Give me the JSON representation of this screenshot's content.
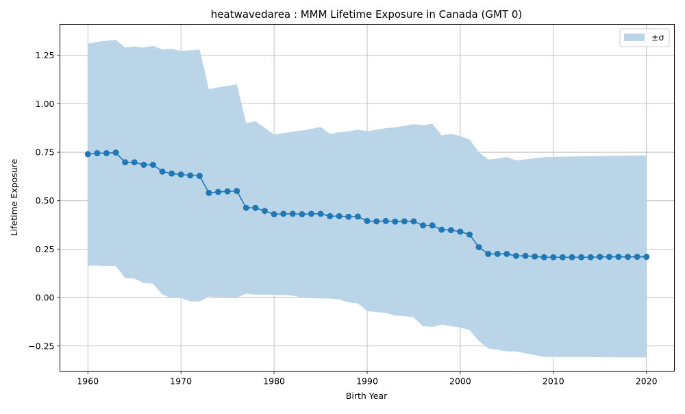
{
  "chart_data": {
    "type": "line",
    "title": "heatwavedarea : MMM Lifetime Exposure in Canada (GMT 0)",
    "xlabel": "Birth Year",
    "ylabel": "Lifetime Exposure",
    "xlim": [
      1957,
      2023
    ],
    "ylim": [
      -0.38,
      1.41
    ],
    "xticks": [
      1960,
      1970,
      1980,
      1990,
      2000,
      2010,
      2020
    ],
    "yticks": [
      -0.25,
      0.0,
      0.25,
      0.5,
      0.75,
      1.0,
      1.25
    ],
    "ytick_labels": [
      "−0.25",
      "0.00",
      "0.25",
      "0.50",
      "0.75",
      "1.00",
      "1.25"
    ],
    "grid": true,
    "legend": {
      "position": "top-right",
      "entries": [
        {
          "label": "±σ",
          "kind": "band"
        }
      ]
    },
    "colors": {
      "line": "#1f77b4",
      "band": "#bbd5e8",
      "grid": "#b0b0b0"
    },
    "x": [
      1960,
      1961,
      1962,
      1963,
      1964,
      1965,
      1966,
      1967,
      1968,
      1969,
      1970,
      1971,
      1972,
      1973,
      1974,
      1975,
      1976,
      1977,
      1978,
      1979,
      1980,
      1981,
      1982,
      1983,
      1984,
      1985,
      1986,
      1987,
      1988,
      1989,
      1990,
      1991,
      1992,
      1993,
      1994,
      1995,
      1996,
      1997,
      1998,
      1999,
      2000,
      2001,
      2002,
      2003,
      2004,
      2005,
      2006,
      2007,
      2008,
      2009,
      2010,
      2011,
      2012,
      2013,
      2014,
      2015,
      2016,
      2017,
      2018,
      2019,
      2020
    ],
    "series": [
      {
        "values": [
          0.74,
          0.745,
          0.745,
          0.748,
          0.698,
          0.698,
          0.685,
          0.685,
          0.65,
          0.64,
          0.635,
          0.63,
          0.628,
          0.54,
          0.545,
          0.548,
          0.55,
          0.463,
          0.463,
          0.447,
          0.43,
          0.432,
          0.432,
          0.43,
          0.432,
          0.432,
          0.42,
          0.42,
          0.417,
          0.418,
          0.395,
          0.393,
          0.395,
          0.392,
          0.393,
          0.393,
          0.372,
          0.372,
          0.35,
          0.348,
          0.34,
          0.325,
          0.26,
          0.225,
          0.225,
          0.225,
          0.215,
          0.215,
          0.212,
          0.208,
          0.208,
          0.208,
          0.208,
          0.208,
          0.208,
          0.21,
          0.21,
          0.21,
          0.21,
          0.21,
          0.21
        ],
        "upper": [
          1.31,
          1.32,
          1.325,
          1.33,
          1.29,
          1.295,
          1.29,
          1.298,
          1.28,
          1.283,
          1.273,
          1.276,
          1.28,
          1.075,
          1.085,
          1.092,
          1.1,
          0.9,
          0.91,
          0.876,
          0.84,
          0.848,
          0.857,
          0.862,
          0.871,
          0.88,
          0.845,
          0.853,
          0.858,
          0.866,
          0.858,
          0.866,
          0.874,
          0.878,
          0.886,
          0.895,
          0.889,
          0.897,
          0.837,
          0.845,
          0.834,
          0.815,
          0.75,
          0.712,
          0.717,
          0.725,
          0.708,
          0.713,
          0.719,
          0.724,
          0.726,
          0.727,
          0.728,
          0.729,
          0.729,
          0.73,
          0.731,
          0.731,
          0.732,
          0.733,
          0.734
        ],
        "lower": [
          0.165,
          0.165,
          0.163,
          0.163,
          0.1,
          0.098,
          0.075,
          0.072,
          0.015,
          -0.003,
          -0.003,
          -0.02,
          -0.02,
          0.005,
          0.003,
          0.003,
          0.0,
          0.02,
          0.015,
          0.015,
          0.015,
          0.013,
          0.01,
          0.0,
          -0.003,
          -0.005,
          -0.005,
          -0.01,
          -0.025,
          -0.03,
          -0.07,
          -0.075,
          -0.08,
          -0.093,
          -0.095,
          -0.103,
          -0.148,
          -0.152,
          -0.14,
          -0.148,
          -0.155,
          -0.168,
          -0.225,
          -0.263,
          -0.27,
          -0.278,
          -0.278,
          -0.288,
          -0.297,
          -0.307,
          -0.307,
          -0.307,
          -0.307,
          -0.307,
          -0.307,
          -0.308,
          -0.308,
          -0.309,
          -0.309,
          -0.309,
          -0.309
        ]
      }
    ]
  }
}
